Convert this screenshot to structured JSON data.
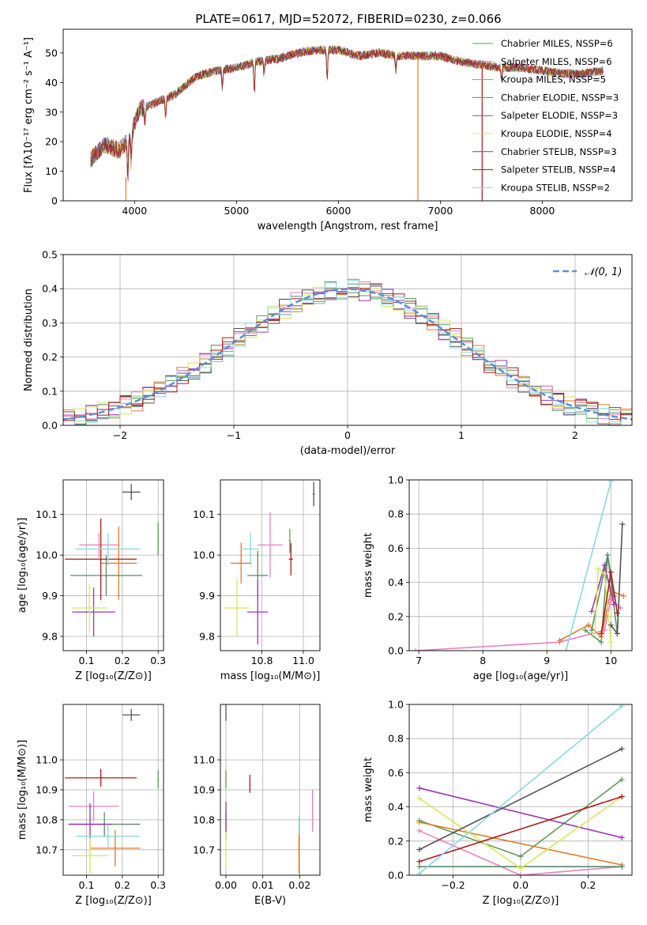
{
  "title": "PLATE=0617, MJD=52072, FIBERID=0230, z=0.066",
  "series": [
    {
      "name": "Chabrier MILES, N<sub>SSP</sub>=6",
      "label": "Chabrier MILES, NSSP=6",
      "color": "#5b9a5b"
    },
    {
      "name": "Salpeter MILES, NSSP=6",
      "label": "Salpeter MILES, NSSP=6",
      "color": "#e87fc0"
    },
    {
      "name": "Kroupa MILES, NSSP=5",
      "label": "Kroupa MILES, NSSP=5",
      "color": "#e07b2a"
    },
    {
      "name": "Chabrier ELODIE, NSSP=3",
      "label": "Chabrier ELODIE, NSSP=3",
      "color": "#5a8a6a"
    },
    {
      "name": "Salpeter ELODIE, NSSP=3",
      "label": "Salpeter ELODIE, NSSP=3",
      "color": "#9a35b0"
    },
    {
      "name": "Kroupa ELODIE, NSSP=4",
      "label": "Kroupa ELODIE, NSSP=4",
      "color": "#d8e85a"
    },
    {
      "name": "Chabrier STELIB, NSSP=3",
      "label": "Chabrier STELIB, NSSP=3",
      "color": "#555555"
    },
    {
      "name": "Salpeter STELIB, NSSP=4",
      "label": "Salpeter STELIB, NSSP=4",
      "color": "#b01818"
    },
    {
      "name": "Kroupa STELIB, NSSP=2",
      "label": "Kroupa STELIB, NSSP=2",
      "color": "#88d8e0"
    }
  ],
  "chart_data": [
    {
      "id": "spectrum",
      "type": "line",
      "xlabel": "wavelength [Angstrom, rest frame]",
      "ylabel": "Flux [fλ10⁻¹⁷ erg cm⁻² s⁻¹ A⁻¹]",
      "xlim": [
        3300,
        8880
      ],
      "ylim": [
        0,
        58
      ],
      "xticks": [
        4000,
        5000,
        6000,
        7000,
        8000
      ],
      "yticks": [
        0,
        10,
        20,
        30,
        40,
        50
      ],
      "continuum": {
        "x": [
          3570,
          3700,
          3850,
          3950,
          4050,
          4200,
          4400,
          4600,
          4800,
          5000,
          5200,
          5400,
          5600,
          5800,
          6000,
          6200,
          6400,
          6600,
          6800,
          7000,
          7200,
          7400,
          7600,
          7800,
          8000,
          8200,
          8400,
          8600
        ],
        "y": [
          14,
          19,
          17,
          21,
          31,
          33,
          36,
          42,
          44,
          45,
          47,
          48,
          50,
          51,
          51,
          49,
          50,
          49,
          49,
          49,
          47,
          46,
          45,
          45,
          44,
          43,
          43,
          44
        ]
      },
      "grid": false
    },
    {
      "id": "residuals",
      "type": "histogram",
      "xlabel": "(data-model)/error",
      "ylabel": "Normed distribution",
      "xlim": [
        -2.5,
        2.5
      ],
      "ylim": [
        0,
        0.5
      ],
      "xticks": [
        -2,
        -1,
        0,
        1,
        2
      ],
      "yticks": [
        0.0,
        0.1,
        0.2,
        0.3,
        0.4,
        0.5
      ],
      "reference_curve": "𝒩(0, 1)",
      "grid": true
    },
    {
      "id": "age_vs_Z",
      "type": "scatter",
      "xlabel": "Z [log₁₀(Z/Z⊙)]",
      "ylabel": "age  [log₁₀(age/yr)]",
      "xlim": [
        0.035,
        0.315
      ],
      "ylim": [
        9.765,
        10.185
      ],
      "xticks": [
        0.1,
        0.2,
        0.3
      ],
      "yticks": [
        9.8,
        9.9,
        10.0,
        10.1
      ],
      "points": [
        {
          "s": 0,
          "x": 0.3,
          "y": 10.04,
          "xerr": 0.002,
          "yerr": 0.04
        },
        {
          "s": 1,
          "x": 0.135,
          "y": 10.025,
          "xerr": 0.055,
          "yerr": 0.03
        },
        {
          "s": 2,
          "x": 0.19,
          "y": 9.98,
          "xerr": 0.05,
          "yerr": 0.09
        },
        {
          "s": 3,
          "x": 0.155,
          "y": 9.95,
          "xerr": 0.1,
          "yerr": 0.05
        },
        {
          "s": 4,
          "x": 0.12,
          "y": 9.86,
          "xerr": 0.06,
          "yerr": 0.06
        },
        {
          "s": 5,
          "x": 0.108,
          "y": 9.87,
          "xerr": 0.05,
          "yerr": 0.06
        },
        {
          "s": 6,
          "x": 0.225,
          "y": 10.155,
          "xerr": 0.025,
          "yerr": 0.02
        },
        {
          "s": 7,
          "x": 0.14,
          "y": 9.99,
          "xerr": 0.1,
          "yerr": 0.1
        },
        {
          "s": 8,
          "x": 0.16,
          "y": 10.015,
          "xerr": 0.09,
          "yerr": 0.04
        }
      ]
    },
    {
      "id": "age_vs_mass",
      "type": "scatter",
      "xlabel": "mass [log₁₀(M/M⊙)]",
      "ylabel": "",
      "xlim": [
        10.6,
        11.08
      ],
      "ylim": [
        9.765,
        10.185
      ],
      "xticks": [
        10.8,
        11.0
      ],
      "yticks": [
        9.8,
        9.9,
        10.0,
        10.1
      ],
      "points": [
        {
          "s": 0,
          "x": 10.935,
          "y": 10.035,
          "xerr": 0.005,
          "yerr": 0.03
        },
        {
          "s": 1,
          "x": 10.84,
          "y": 10.025,
          "xerr": 0.06,
          "yerr": 0.08
        },
        {
          "s": 2,
          "x": 10.7,
          "y": 9.98,
          "xerr": 0.05,
          "yerr": 0.05
        },
        {
          "s": 3,
          "x": 10.78,
          "y": 9.95,
          "xerr": 0.05,
          "yerr": 0.06
        },
        {
          "s": 4,
          "x": 10.78,
          "y": 9.86,
          "xerr": 0.05,
          "yerr": 0.08
        },
        {
          "s": 5,
          "x": 10.68,
          "y": 9.87,
          "xerr": 0.06,
          "yerr": 0.07
        },
        {
          "s": 6,
          "x": 11.05,
          "y": 10.15,
          "xerr": 0.005,
          "yerr": 0.03
        },
        {
          "s": 7,
          "x": 10.94,
          "y": 9.99,
          "xerr": 0.01,
          "yerr": 0.04
        },
        {
          "s": 8,
          "x": 10.745,
          "y": 10.015,
          "xerr": 0.04,
          "yerr": 0.04
        }
      ]
    },
    {
      "id": "massweight_vs_age",
      "type": "line",
      "xlabel": "age  [log₁₀(age/yr)]",
      "ylabel": "mass weight",
      "xlim": [
        6.85,
        10.33
      ],
      "ylim": [
        0,
        1
      ],
      "xticks": [
        7,
        8,
        9,
        10
      ],
      "yticks": [
        0.0,
        0.2,
        0.4,
        0.6,
        0.8,
        1.0
      ],
      "lines": [
        {
          "s": 0,
          "x": [
            9.6,
            9.85,
            9.95,
            10.1
          ],
          "y": [
            0.12,
            0.05,
            0.56,
            0.1
          ]
        },
        {
          "s": 1,
          "x": [
            6.95,
            9.2,
            9.9,
            10.0,
            10.15
          ],
          "y": [
            0.0,
            0.05,
            0.12,
            0.3,
            0.25
          ]
        },
        {
          "s": 2,
          "x": [
            9.2,
            9.65,
            9.85,
            10.0,
            10.2
          ],
          "y": [
            0.06,
            0.15,
            0.08,
            0.35,
            0.32
          ]
        },
        {
          "s": 3,
          "x": [
            9.7,
            9.95,
            10.05
          ],
          "y": [
            0.12,
            0.56,
            0.32
          ]
        },
        {
          "s": 4,
          "x": [
            9.7,
            9.9,
            10.05
          ],
          "y": [
            0.23,
            0.5,
            0.27
          ]
        },
        {
          "s": 5,
          "x": [
            9.75,
            9.8,
            9.9,
            10.0
          ],
          "y": [
            0.1,
            0.48,
            0.45,
            0.05
          ]
        },
        {
          "s": 6,
          "x": [
            10.0,
            10.1,
            10.18
          ],
          "y": [
            0.15,
            0.1,
            0.74
          ]
        },
        {
          "s": 7,
          "x": [
            9.85,
            10.0,
            10.1
          ],
          "y": [
            0.1,
            0.46,
            0.22
          ]
        },
        {
          "s": 8,
          "x": [
            9.3,
            10.0
          ],
          "y": [
            0.0,
            0.99
          ]
        }
      ]
    },
    {
      "id": "mass_vs_Z",
      "type": "scatter",
      "xlabel": "Z [log₁₀(Z/Z⊙)]",
      "ylabel": "mass [log₁₀(M/M⊙)]",
      "xlim": [
        0.035,
        0.315
      ],
      "ylim": [
        10.615,
        11.185
      ],
      "xticks": [
        0.1,
        0.2,
        0.3
      ],
      "yticks": [
        10.7,
        10.8,
        10.9,
        11.0
      ],
      "points": [
        {
          "s": 0,
          "x": 0.3,
          "y": 10.935,
          "xerr": 0.002,
          "yerr": 0.03
        },
        {
          "s": 1,
          "x": 0.12,
          "y": 10.845,
          "xerr": 0.07,
          "yerr": 0.05
        },
        {
          "s": 2,
          "x": 0.18,
          "y": 10.705,
          "xerr": 0.07,
          "yerr": 0.06
        },
        {
          "s": 3,
          "x": 0.15,
          "y": 10.785,
          "xerr": 0.1,
          "yerr": 0.04
        },
        {
          "s": 4,
          "x": 0.11,
          "y": 10.785,
          "xerr": 0.06,
          "yerr": 0.07
        },
        {
          "s": 5,
          "x": 0.11,
          "y": 10.68,
          "xerr": 0.05,
          "yerr": 0.06
        },
        {
          "s": 6,
          "x": 0.225,
          "y": 11.15,
          "xerr": 0.025,
          "yerr": 0.02
        },
        {
          "s": 7,
          "x": 0.14,
          "y": 10.94,
          "xerr": 0.1,
          "yerr": 0.03
        },
        {
          "s": 8,
          "x": 0.16,
          "y": 10.745,
          "xerr": 0.09,
          "yerr": 0.04
        }
      ]
    },
    {
      "id": "mass_vs_EBV",
      "type": "scatter",
      "xlabel": "E(B-V)",
      "ylabel": "",
      "xlim": [
        -0.0015,
        0.0255
      ],
      "ylim": [
        10.615,
        11.185
      ],
      "xticks": [
        0.0,
        0.01,
        0.02
      ],
      "yticks": [
        10.7,
        10.8,
        10.9,
        11.0
      ],
      "points": [
        {
          "s": 0,
          "x": 0.0,
          "y": 10.935,
          "xerr": 0,
          "yerr": 0.03
        },
        {
          "s": 1,
          "x": 0.0235,
          "y": 10.83,
          "xerr": 0,
          "yerr": 0.07
        },
        {
          "s": 2,
          "x": 0.0198,
          "y": 10.69,
          "xerr": 0,
          "yerr": 0.07
        },
        {
          "s": 3,
          "x": 0.0,
          "y": 10.78,
          "xerr": 0,
          "yerr": 0.05
        },
        {
          "s": 4,
          "x": 0.0,
          "y": 10.81,
          "xerr": 0,
          "yerr": 0.05
        },
        {
          "s": 5,
          "x": 0.0,
          "y": 10.7,
          "xerr": 0,
          "yerr": 0.06
        },
        {
          "s": 6,
          "x": 0.0,
          "y": 11.16,
          "xerr": 0,
          "yerr": 0.03
        },
        {
          "s": 7,
          "x": 0.0065,
          "y": 10.92,
          "xerr": 0,
          "yerr": 0.03
        },
        {
          "s": 8,
          "x": 0.0198,
          "y": 10.78,
          "xerr": 0,
          "yerr": 0.03
        }
      ]
    },
    {
      "id": "massweight_vs_Z",
      "type": "line",
      "xlabel": "Z [log₁₀(Z/Z⊙)]",
      "ylabel": "mass weight",
      "xlim": [
        -0.33,
        0.33
      ],
      "ylim": [
        0,
        1
      ],
      "xticks": [
        -0.2,
        0.0,
        0.2
      ],
      "yticks": [
        0.0,
        0.2,
        0.4,
        0.6,
        0.8,
        1.0
      ],
      "lines": [
        {
          "s": 0,
          "x": [
            -0.3,
            0.0,
            0.3
          ],
          "y": [
            0.32,
            0.11,
            0.56
          ]
        },
        {
          "s": 1,
          "x": [
            -0.3,
            0.0,
            0.3
          ],
          "y": [
            0.26,
            0.0,
            0.05
          ]
        },
        {
          "s": 2,
          "x": [
            -0.3,
            0.3
          ],
          "y": [
            0.31,
            0.06
          ]
        },
        {
          "s": 3,
          "x": [
            -0.3,
            0.3
          ],
          "y": [
            0.05,
            0.05
          ]
        },
        {
          "s": 4,
          "x": [
            -0.3,
            0.3
          ],
          "y": [
            0.51,
            0.22
          ]
        },
        {
          "s": 5,
          "x": [
            -0.3,
            0.0,
            0.3
          ],
          "y": [
            0.45,
            0.04,
            0.46
          ]
        },
        {
          "s": 6,
          "x": [
            -0.3,
            0.3
          ],
          "y": [
            0.15,
            0.74
          ]
        },
        {
          "s": 7,
          "x": [
            -0.3,
            0.3
          ],
          "y": [
            0.08,
            0.46
          ]
        },
        {
          "s": 8,
          "x": [
            -0.3,
            0.3
          ],
          "y": [
            0.01,
            0.99
          ]
        }
      ]
    }
  ]
}
